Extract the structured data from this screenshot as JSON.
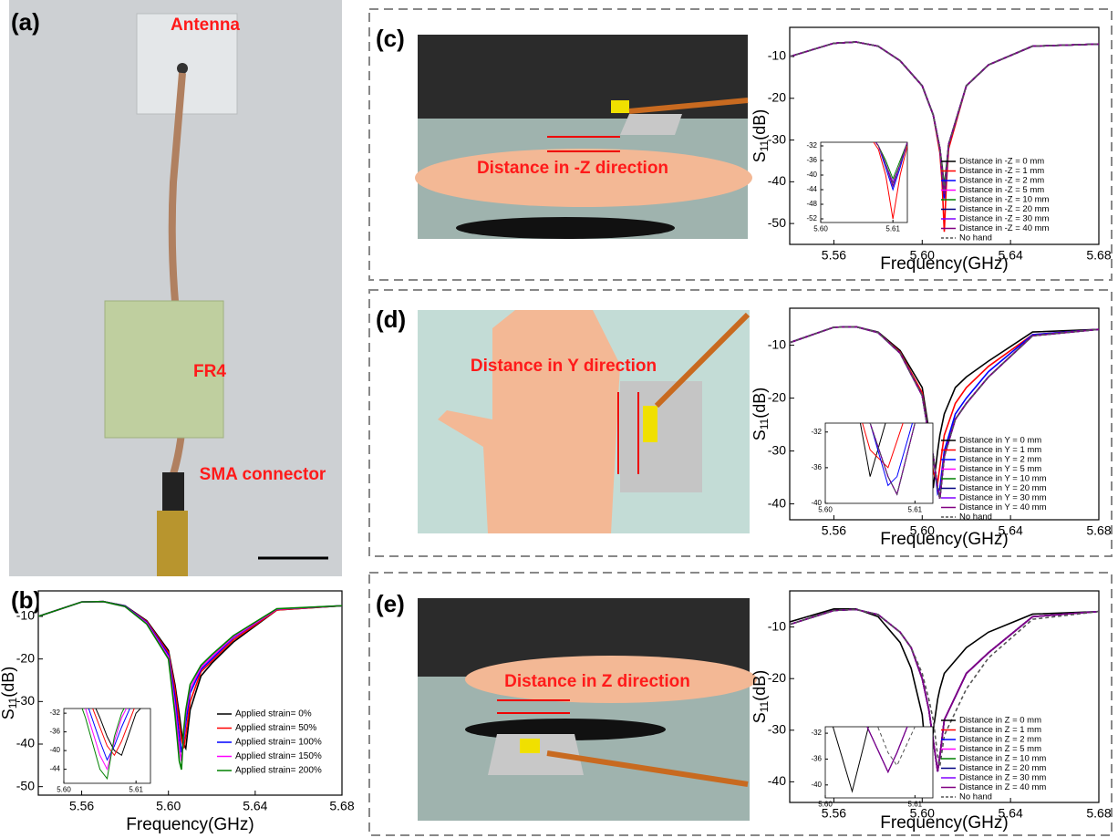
{
  "panel_labels": [
    "(a)",
    "(b)",
    "(c)",
    "(d)",
    "(e)"
  ],
  "photo_labels": {
    "a": [
      "Antenna",
      "FR4",
      "SMA connector"
    ],
    "c": "Distance in -Z direction",
    "d": "Distance in Y direction",
    "e": "Distance in Z direction"
  },
  "chart_data": [
    {
      "type": "line",
      "xlabel": "Frequency(GHz)",
      "ylabel": [
        "S",
        "11",
        "(dB)"
      ],
      "xlim": [
        5.54,
        5.68
      ],
      "xticks": [
        5.56,
        {
          "value": 5.6,
          "label": "5.60"
        },
        5.64,
        5.68
      ],
      "ylim": [
        -52,
        -4
      ],
      "yticks": [
        -10,
        -20,
        -30,
        -40,
        -50
      ],
      "x": [
        5.54,
        5.56,
        5.57,
        5.58,
        5.59,
        5.6,
        5.603,
        5.605,
        5.606,
        5.607,
        5.608,
        5.61,
        5.615,
        5.62,
        5.63,
        5.65,
        5.68
      ],
      "series": [
        {
          "name": "Applied strain= 0%",
          "color": "#000000",
          "values": [
            -10,
            -6.6,
            -6.5,
            -7.5,
            -11,
            -18,
            -26,
            -33,
            -37,
            -40,
            -41,
            -32,
            -24,
            -21,
            -16,
            -8.5,
            -7.5
          ]
        },
        {
          "name": "Applied strain= 50%",
          "color": "#ff0000",
          "values": [
            -10,
            -6.6,
            -6.5,
            -7.6,
            -11.2,
            -18.5,
            -27,
            -35,
            -39,
            -41,
            -38,
            -30,
            -23,
            -20.5,
            -15.5,
            -8.5,
            -7.5
          ]
        },
        {
          "name": "Applied strain= 100%",
          "color": "#0000ff",
          "values": [
            -10,
            -6.6,
            -6.5,
            -7.6,
            -11.4,
            -19,
            -29,
            -38,
            -42,
            -39,
            -35,
            -28,
            -22.5,
            -20,
            -15,
            -8.3,
            -7.5
          ]
        },
        {
          "name": "Applied strain= 150%",
          "color": "#ff00ff",
          "values": [
            -10,
            -6.6,
            -6.5,
            -7.7,
            -11.6,
            -19.5,
            -31,
            -41,
            -44,
            -38,
            -33,
            -27,
            -22,
            -19.5,
            -14.8,
            -8.3,
            -7.5
          ]
        },
        {
          "name": "Applied strain= 200%",
          "color": "#008000",
          "values": [
            -10,
            -6.6,
            -6.5,
            -7.7,
            -11.8,
            -20,
            -33,
            -44,
            -46,
            -37,
            -32,
            -26,
            -21.5,
            -19,
            -14.5,
            -8.2,
            -7.5
          ]
        }
      ],
      "inset": {
        "xlim": [
          5.6,
          5.612
        ],
        "ylim": [
          -47,
          -31
        ],
        "xticks": [
          {
            "value": 5.6,
            "label": "5.60"
          },
          5.61
        ],
        "yticks": [
          -32,
          -36,
          -40,
          -44
        ]
      }
    },
    {
      "type": "line",
      "xlabel": "Frequency(GHz)",
      "ylabel": [
        "S",
        "11",
        "(dB)"
      ],
      "xlim": [
        5.54,
        5.68
      ],
      "xticks": [
        5.56,
        {
          "value": 5.6,
          "label": "5.60"
        },
        5.64,
        5.68
      ],
      "ylim": [
        -55,
        -3
      ],
      "yticks": [
        -10,
        -20,
        -30,
        -40,
        -50
      ],
      "x": [
        5.54,
        5.56,
        5.57,
        5.58,
        5.59,
        5.6,
        5.605,
        5.608,
        5.609,
        5.61,
        5.611,
        5.612,
        5.62,
        5.63,
        5.65,
        5.68
      ],
      "series": [
        {
          "name": "Distance in -Z = 0 mm",
          "color": "#000000",
          "values": [
            -10,
            -6.8,
            -6.5,
            -7.5,
            -11,
            -17,
            -24,
            -32,
            -37,
            -42,
            -37,
            -31,
            -17,
            -12,
            -7.5,
            -7
          ]
        },
        {
          "name": "Distance in -Z = 1 mm",
          "color": "#ff0000",
          "values": [
            -10,
            -6.8,
            -6.5,
            -7.5,
            -11,
            -17,
            -24,
            -33,
            -40,
            -52,
            -40,
            -32,
            -17,
            -12,
            -7.5,
            -7
          ]
        },
        {
          "name": "Distance in -Z = 2 mm",
          "color": "#0000ff",
          "values": [
            -10,
            -6.8,
            -6.5,
            -7.5,
            -11,
            -17,
            -24,
            -32,
            -38,
            -44,
            -38,
            -31,
            -17,
            -12,
            -7.5,
            -7
          ]
        },
        {
          "name": "Distance in -Z = 5 mm",
          "color": "#ff00ff",
          "values": [
            -10,
            -6.8,
            -6.5,
            -7.5,
            -11,
            -17,
            -24,
            -32,
            -37,
            -42,
            -37,
            -31,
            -17,
            -12,
            -7.5,
            -7
          ]
        },
        {
          "name": "Distance in -Z = 10 mm",
          "color": "#008000",
          "values": [
            -10,
            -6.8,
            -6.5,
            -7.5,
            -11,
            -17,
            -24,
            -32,
            -36,
            -41,
            -36,
            -31,
            -17,
            -12,
            -7.5,
            -7
          ]
        },
        {
          "name": "Distance in -Z = 20 mm",
          "color": "#000080",
          "values": [
            -10,
            -6.8,
            -6.5,
            -7.5,
            -11,
            -17,
            -24,
            -32,
            -37,
            -43,
            -37,
            -31,
            -17,
            -12,
            -7.5,
            -7
          ]
        },
        {
          "name": "Distance in -Z = 30 mm",
          "color": "#8000ff",
          "values": [
            -10,
            -6.8,
            -6.5,
            -7.5,
            -11,
            -17,
            -24,
            -32,
            -37,
            -42,
            -37,
            -31,
            -17,
            -12,
            -7.5,
            -7
          ]
        },
        {
          "name": "Distance in -Z = 40 mm",
          "color": "#800080",
          "values": [
            -10,
            -6.8,
            -6.5,
            -7.5,
            -11,
            -17,
            -24,
            -32,
            -37,
            -43,
            -37,
            -31,
            -17,
            -12,
            -7.5,
            -7
          ]
        },
        {
          "name": "No hand",
          "color": "#555555",
          "style": "dashed",
          "values": [
            -10,
            -6.8,
            -6.5,
            -7.5,
            -11,
            -17,
            -24,
            -32,
            -37,
            -42,
            -37,
            -31,
            -17,
            -12,
            -7.5,
            -7
          ]
        }
      ],
      "inset": {
        "xlim": [
          5.6,
          5.612
        ],
        "ylim": [
          -53,
          -31
        ],
        "xticks": [
          {
            "value": 5.6,
            "label": "5.60"
          },
          5.61
        ],
        "yticks": [
          -32,
          -36,
          -40,
          -44,
          -48,
          -52
        ]
      }
    },
    {
      "type": "line",
      "xlabel": "Frequency(GHz)",
      "ylabel": [
        "S",
        "11",
        "(dB)"
      ],
      "xlim": [
        5.54,
        5.68
      ],
      "xticks": [
        5.56,
        {
          "value": 5.6,
          "label": "5.60"
        },
        5.64,
        5.68
      ],
      "ylim": [
        -43,
        -3
      ],
      "yticks": [
        -10,
        -20,
        -30,
        -40
      ],
      "x": [
        5.54,
        5.56,
        5.57,
        5.58,
        5.59,
        5.6,
        5.603,
        5.605,
        5.607,
        5.608,
        5.61,
        5.615,
        5.62,
        5.63,
        5.65,
        5.68
      ],
      "series": [
        {
          "name": "Distance in Y = 0 mm",
          "color": "#000000",
          "values": [
            -9.5,
            -6.6,
            -6.5,
            -7.5,
            -11,
            -18,
            -26,
            -37,
            -30,
            -27,
            -23,
            -18,
            -16,
            -13,
            -7.5,
            -7
          ]
        },
        {
          "name": "Distance in Y = 1 mm",
          "color": "#ff0000",
          "values": [
            -9.5,
            -6.6,
            -6.5,
            -7.6,
            -11.3,
            -19,
            -27,
            -34,
            -36,
            -33,
            -27,
            -21,
            -18,
            -14,
            -8,
            -7
          ]
        },
        {
          "name": "Distance in Y = 2 mm",
          "color": "#0000ff",
          "values": [
            -9.5,
            -6.6,
            -6.5,
            -7.6,
            -11.5,
            -19.5,
            -27,
            -31,
            -38,
            -37,
            -30,
            -23,
            -20,
            -15,
            -8,
            -7
          ]
        },
        {
          "name": "Distance in Y = 5 mm",
          "color": "#ff00ff",
          "values": [
            -9.5,
            -6.6,
            -6.5,
            -7.6,
            -11.5,
            -19.5,
            -27,
            -31,
            -37,
            -39,
            -31,
            -24,
            -21,
            -16,
            -8.2,
            -7
          ]
        },
        {
          "name": "Distance in Y = 10 mm",
          "color": "#008000",
          "values": [
            -9.5,
            -6.6,
            -6.5,
            -7.6,
            -11.5,
            -19.5,
            -27,
            -31,
            -37,
            -39,
            -31,
            -24,
            -21,
            -16,
            -8.2,
            -7
          ]
        },
        {
          "name": "Distance in Y = 20 mm",
          "color": "#000080",
          "values": [
            -9.5,
            -6.6,
            -6.5,
            -7.6,
            -11.5,
            -19.5,
            -27,
            -31,
            -37,
            -39,
            -31,
            -24,
            -21,
            -16,
            -8.2,
            -7
          ]
        },
        {
          "name": "Distance in Y = 30 mm",
          "color": "#8000ff",
          "values": [
            -9.5,
            -6.6,
            -6.5,
            -7.6,
            -11.5,
            -19.5,
            -27,
            -31,
            -37,
            -39,
            -31,
            -24,
            -21,
            -16,
            -8.2,
            -7
          ]
        },
        {
          "name": "Distance in Y = 40 mm",
          "color": "#800080",
          "values": [
            -9.5,
            -6.6,
            -6.5,
            -7.6,
            -11.5,
            -19.5,
            -27,
            -31,
            -37,
            -39,
            -31,
            -24,
            -21,
            -16,
            -8.2,
            -7
          ]
        },
        {
          "name": "No hand",
          "color": "#555555",
          "style": "dashed",
          "values": [
            -9.5,
            -6.6,
            -6.5,
            -7.6,
            -11.5,
            -19.5,
            -27,
            -31,
            -37,
            -39,
            -31,
            -24,
            -21,
            -16,
            -8.2,
            -7
          ]
        }
      ],
      "inset": {
        "xlim": [
          5.6,
          5.612
        ],
        "ylim": [
          -40,
          -31
        ],
        "xticks": [
          {
            "value": 5.6,
            "label": "5.60"
          },
          5.61
        ],
        "yticks": [
          -32,
          -36,
          -40
        ]
      }
    },
    {
      "type": "line",
      "xlabel": "Frequency(GHz)",
      "ylabel": [
        "S",
        "11",
        "(dB)"
      ],
      "xlim": [
        5.54,
        5.68
      ],
      "xticks": [
        5.56,
        {
          "value": 5.6,
          "label": "5.60"
        },
        5.64,
        5.68
      ],
      "ylim": [
        -44,
        -3
      ],
      "yticks": [
        -10,
        -20,
        -30,
        -40
      ],
      "x": [
        5.54,
        5.56,
        5.57,
        5.58,
        5.59,
        5.595,
        5.6,
        5.603,
        5.605,
        5.607,
        5.608,
        5.61,
        5.62,
        5.63,
        5.65,
        5.68
      ],
      "series": [
        {
          "name": "Distance in Z = 0 mm",
          "color": "#000000",
          "values": [
            -9,
            -6.5,
            -6.5,
            -8,
            -13,
            -18,
            -27,
            -41,
            -30,
            -24,
            -22,
            -19,
            -14,
            -11,
            -7.5,
            -7
          ]
        },
        {
          "name": "Distance in Z = 1 mm",
          "color": "#ff0000",
          "values": [
            -9.5,
            -6.8,
            -6.6,
            -7.6,
            -11,
            -14,
            -20,
            -26,
            -32,
            -38,
            -35,
            -28,
            -19,
            -15,
            -8,
            -7
          ]
        },
        {
          "name": "Distance in Z = 2 mm",
          "color": "#0000ff",
          "values": [
            -9.5,
            -6.8,
            -6.6,
            -7.6,
            -11,
            -14,
            -20,
            -26,
            -32,
            -38,
            -35,
            -28,
            -19,
            -15,
            -8,
            -7
          ]
        },
        {
          "name": "Distance in Z = 5 mm",
          "color": "#ff00ff",
          "values": [
            -9.5,
            -6.8,
            -6.6,
            -7.6,
            -11,
            -14,
            -20,
            -26,
            -32,
            -38,
            -35,
            -28,
            -19,
            -15,
            -8,
            -7
          ]
        },
        {
          "name": "Distance in Z = 10 mm",
          "color": "#008000",
          "values": [
            -9.5,
            -6.8,
            -6.6,
            -7.6,
            -11,
            -14,
            -20,
            -26,
            -32,
            -38,
            -35,
            -28,
            -19,
            -15,
            -8,
            -7
          ]
        },
        {
          "name": "Distance in Z = 20 mm",
          "color": "#000080",
          "values": [
            -9.5,
            -6.8,
            -6.6,
            -7.6,
            -11,
            -14,
            -20,
            -26,
            -32,
            -38,
            -35,
            -28,
            -19,
            -15,
            -8,
            -7
          ]
        },
        {
          "name": "Distance in Z = 30 mm",
          "color": "#8000ff",
          "values": [
            -9.5,
            -6.8,
            -6.6,
            -7.6,
            -11,
            -14,
            -20,
            -26,
            -32,
            -38,
            -35,
            -28,
            -19,
            -15,
            -8,
            -7
          ]
        },
        {
          "name": "Distance in Z = 40 mm",
          "color": "#800080",
          "values": [
            -9.5,
            -6.8,
            -6.6,
            -7.6,
            -11,
            -14,
            -20,
            -26,
            -32,
            -38,
            -35,
            -28,
            -19,
            -15,
            -8,
            -7
          ]
        },
        {
          "name": "No hand",
          "color": "#555555",
          "style": "dashed",
          "values": [
            -9.5,
            -6.8,
            -6.6,
            -7.6,
            -11,
            -14,
            -19,
            -24,
            -28,
            -35,
            -37,
            -31,
            -22,
            -16,
            -8.5,
            -7
          ]
        }
      ],
      "inset": {
        "xlim": [
          5.6,
          5.612
        ],
        "ylim": [
          -42,
          -31
        ],
        "xticks": [
          {
            "value": 5.6,
            "label": "5.60"
          },
          5.61
        ],
        "yticks": [
          -32,
          -36,
          -40
        ]
      }
    }
  ]
}
